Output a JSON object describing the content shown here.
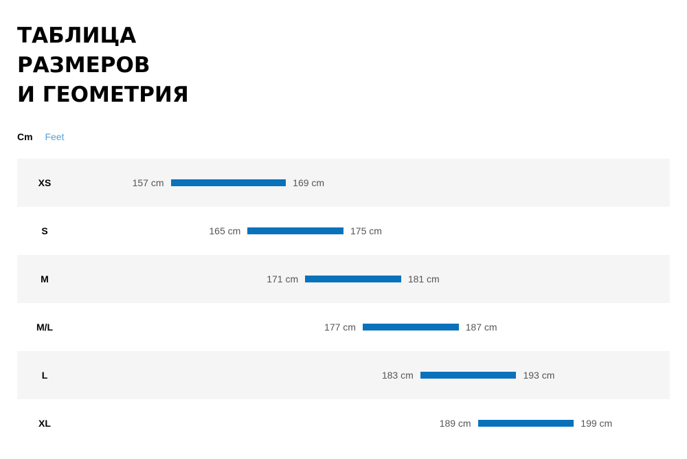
{
  "title_lines": [
    "ТАБЛИЦА",
    "РАЗМЕРОВ",
    "И ГЕОМЕТРИЯ"
  ],
  "units": {
    "active": "Cm",
    "inactive": "Feet"
  },
  "colors": {
    "bar": "#0a72ba",
    "row_shade": "#f5f5f5",
    "link": "#5aa0d4"
  },
  "chart_data": {
    "type": "bar",
    "orientation": "horizontal-range",
    "categories": [
      "XS",
      "S",
      "M",
      "M/L",
      "L",
      "XL"
    ],
    "series": [
      {
        "values_min": [
          157,
          165,
          171,
          177,
          183,
          189
        ],
        "values_max": [
          169,
          175,
          181,
          187,
          193,
          199
        ]
      }
    ],
    "min_labels": [
      "157 cm",
      "165 cm",
      "171 cm",
      "177 cm",
      "183 cm",
      "189 cm"
    ],
    "max_labels": [
      "169 cm",
      "175 cm",
      "181 cm",
      "187 cm",
      "193 cm",
      "199 cm"
    ],
    "unit": "cm",
    "xlim": [
      141,
      209
    ],
    "grid": false
  }
}
